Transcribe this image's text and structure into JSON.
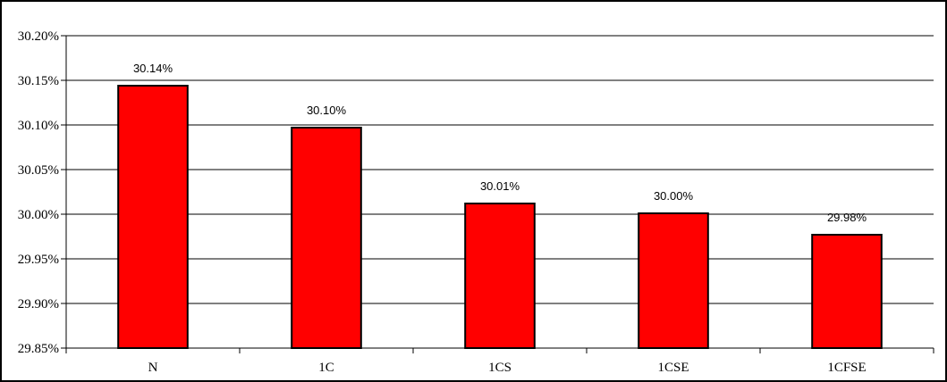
{
  "chart_data": {
    "type": "bar",
    "categories": [
      "N",
      "1C",
      "1CS",
      "1CSE",
      "1CFSE"
    ],
    "values": [
      30.144,
      30.097,
      30.012,
      30.001,
      29.977
    ],
    "data_labels": [
      "30.14%",
      "30.10%",
      "30.01%",
      "30.00%",
      "29.98%"
    ],
    "title": "",
    "xlabel": "",
    "ylabel": "",
    "ylim": [
      29.85,
      30.2
    ],
    "y_ticks": [
      29.85,
      29.9,
      29.95,
      30.0,
      30.05,
      30.1,
      30.15,
      30.2
    ],
    "y_tick_labels": [
      "29.85%",
      "29.90%",
      "29.95%",
      "30.00%",
      "30.05%",
      "30.10%",
      "30.15%",
      "30.20%"
    ],
    "grid": true,
    "legend": "none",
    "bar_color": "#ff0000",
    "bar_outline": "#000000"
  }
}
